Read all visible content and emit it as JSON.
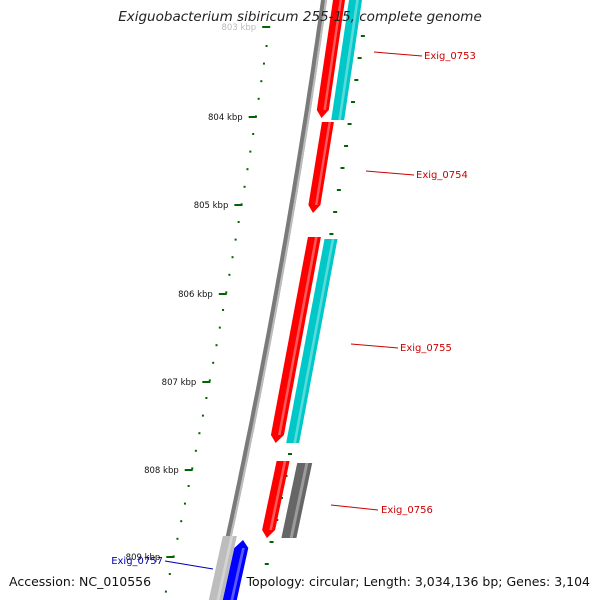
{
  "header": {
    "title": "Exiguobacterium sibiricum 255-15, complete genome"
  },
  "scale_ticks": [
    {
      "label": "803 kbp"
    },
    {
      "label": "804 kbp"
    },
    {
      "label": "805 kbp"
    },
    {
      "label": "806 kbp"
    },
    {
      "label": "807 kbp"
    },
    {
      "label": "808 kbp"
    },
    {
      "label": "809 kbp"
    }
  ],
  "genes": [
    {
      "label": "Exig_0753",
      "color": "#cc0000"
    },
    {
      "label": "Exig_0754",
      "color": "#cc0000"
    },
    {
      "label": "Exig_0755",
      "color": "#cc0000"
    },
    {
      "label": "Exig_0756",
      "color": "#cc0000"
    },
    {
      "label": "Exig_0757",
      "color": "#0000bb"
    }
  ],
  "colors": {
    "forward_cds": "#ff0000",
    "forward_feature": "#00c8c8",
    "reverse_cds": "#0000ff",
    "other_feature": "#666666",
    "backbone": "#7a7a7a",
    "tick": "#006400"
  },
  "footer": {
    "accession_label": "Accession:",
    "accession_value": "NC_010556",
    "topology_label": "Topology:",
    "topology_value": "circular;",
    "length_label": "Length:",
    "length_value": "3,034,136 bp;",
    "genes_label": "Genes:",
    "genes_value": "3,104"
  }
}
